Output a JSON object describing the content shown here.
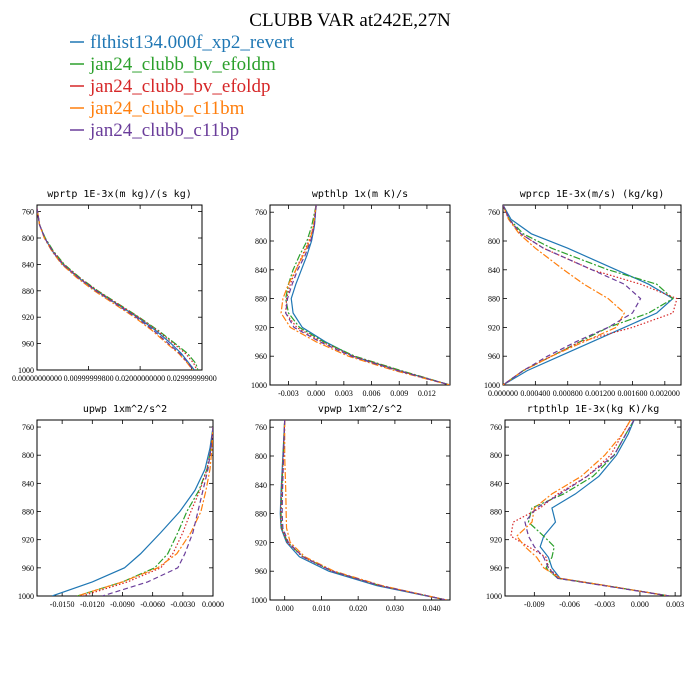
{
  "title": "CLUBB VAR at242E,27N",
  "legend": [
    {
      "label": "flthist134.000f_xp2_revert",
      "color": "#1f77b4",
      "dash": "solid"
    },
    {
      "label": "jan24_clubb_bv_efoldm",
      "color": "#2ca02c",
      "dash": "dashdot"
    },
    {
      "label": "jan24_clubb_bv_efoldp",
      "color": "#d62728",
      "dash": "dotted"
    },
    {
      "label": "jan24_clubb_c11bm",
      "color": "#ff7f0e",
      "dash": "dashdot"
    },
    {
      "label": "jan24_clubb_c11bp",
      "color": "#6a3d9a",
      "dash": "dashed"
    }
  ],
  "chart_data": [
    {
      "type": "line",
      "title": "wprtp  1E-3x(m kg)/(s kg)",
      "xlim": [
        0.0,
        0.032
      ],
      "ylim": [
        1000,
        750
      ],
      "xticks": [
        0.0,
        0.01,
        0.02,
        0.03
      ],
      "xtick_labels": [
        "0.00000000000",
        "0.00999999800",
        "0.02000000000",
        "0.02999999900"
      ],
      "yticks": [
        760,
        800,
        840,
        880,
        920,
        960,
        1000
      ],
      "ytick_labels": [
        "760",
        "800",
        "840",
        "880",
        "920",
        "960",
        "1000"
      ],
      "y": [
        755,
        780,
        800,
        820,
        840,
        860,
        880,
        900,
        920,
        940,
        960,
        975,
        990,
        1000
      ],
      "series": [
        {
          "name": "flthist134.000f_xp2_revert",
          "values": [
            0.0,
            0.0005,
            0.0015,
            0.003,
            0.005,
            0.008,
            0.0115,
            0.0155,
            0.0195,
            0.023,
            0.026,
            0.028,
            0.0295,
            0.0305
          ]
        },
        {
          "name": "jan24_clubb_bv_efoldm",
          "values": [
            0.0,
            0.0005,
            0.0016,
            0.0032,
            0.0053,
            0.0083,
            0.0118,
            0.0158,
            0.0198,
            0.0235,
            0.0268,
            0.0292,
            0.0308,
            0.0312
          ]
        },
        {
          "name": "jan24_clubb_bv_efoldp",
          "values": [
            0.0,
            0.0005,
            0.0015,
            0.0031,
            0.0052,
            0.0082,
            0.0117,
            0.0157,
            0.0197,
            0.0233,
            0.0265,
            0.0288,
            0.0304,
            0.031
          ]
        },
        {
          "name": "jan24_clubb_c11bm",
          "values": [
            0.0,
            0.0005,
            0.0014,
            0.0029,
            0.0048,
            0.0077,
            0.0111,
            0.015,
            0.0189,
            0.0223,
            0.0252,
            0.0275,
            0.0292,
            0.0302
          ]
        },
        {
          "name": "jan24_clubb_c11bp",
          "values": [
            0.0,
            0.0005,
            0.0015,
            0.003,
            0.005,
            0.008,
            0.0114,
            0.0153,
            0.0192,
            0.0226,
            0.0255,
            0.0277,
            0.0294,
            0.0303
          ]
        }
      ]
    },
    {
      "type": "line",
      "title": "wpthlp  1x(m K)/s",
      "xlim": [
        -0.005,
        0.0145
      ],
      "ylim": [
        1000,
        750
      ],
      "xticks": [
        -0.003,
        0.0,
        0.003,
        0.006,
        0.009,
        0.012
      ],
      "xtick_labels": [
        "-0.003",
        "0.000",
        "0.003",
        "0.006",
        "0.009",
        "0.012"
      ],
      "yticks": [
        760,
        800,
        840,
        880,
        920,
        960,
        1000
      ],
      "ytick_labels": [
        "760",
        "800",
        "840",
        "880",
        "920",
        "960",
        "1000"
      ],
      "y": [
        750,
        780,
        800,
        820,
        840,
        860,
        880,
        900,
        920,
        940,
        960,
        980,
        1000
      ],
      "series": [
        {
          "name": "flthist134.000f_xp2_revert",
          "values": [
            0.0,
            -0.0002,
            -0.0005,
            -0.001,
            -0.0016,
            -0.0022,
            -0.0027,
            -0.0025,
            -0.0015,
            0.001,
            0.004,
            0.009,
            0.0145
          ]
        },
        {
          "name": "jan24_clubb_bv_efoldm",
          "values": [
            0.0,
            -0.0005,
            -0.001,
            -0.0018,
            -0.0025,
            -0.003,
            -0.0033,
            -0.003,
            -0.0018,
            0.0008,
            0.0042,
            0.0092,
            0.0145
          ]
        },
        {
          "name": "jan24_clubb_bv_efoldp",
          "values": [
            0.0,
            -0.0003,
            -0.0008,
            -0.0015,
            -0.0022,
            -0.0028,
            -0.0032,
            -0.0033,
            -0.0021,
            0.0006,
            0.004,
            0.009,
            0.0145
          ]
        },
        {
          "name": "jan24_clubb_c11bm",
          "values": [
            0.0,
            -0.0003,
            -0.0007,
            -0.0014,
            -0.0022,
            -0.003,
            -0.0036,
            -0.0038,
            -0.0028,
            0.0,
            0.0035,
            0.0085,
            0.0145
          ]
        },
        {
          "name": "jan24_clubb_c11bp",
          "values": [
            0.0,
            -0.0002,
            -0.0006,
            -0.0012,
            -0.002,
            -0.0026,
            -0.0031,
            -0.0033,
            -0.0024,
            0.0004,
            0.0038,
            0.0088,
            0.0145
          ]
        }
      ]
    },
    {
      "type": "line",
      "title": "wprcp  1E-3x(m/s) (kg/kg)",
      "xlim": [
        0.0,
        0.0022
      ],
      "ylim": [
        1000,
        750
      ],
      "xticks": [
        0.0,
        0.0004,
        0.0008,
        0.0012,
        0.0016,
        0.002
      ],
      "xtick_labels": [
        "0.000000",
        "0.000400",
        "0.000800",
        "0.001200",
        "0.001600",
        "0.002000"
      ],
      "yticks": [
        760,
        800,
        840,
        880,
        920,
        960,
        1000
      ],
      "ytick_labels": [
        "760",
        "800",
        "840",
        "880",
        "920",
        "960",
        "1000"
      ],
      "y": [
        750,
        770,
        790,
        810,
        840,
        860,
        880,
        900,
        920,
        940,
        960,
        980,
        1000
      ],
      "series": [
        {
          "name": "flthist134.000f_xp2_revert",
          "values": [
            0.0,
            0.0001,
            0.00035,
            0.0008,
            0.0014,
            0.0018,
            0.0021,
            0.0019,
            0.0015,
            0.0011,
            0.0007,
            0.0003,
            0.0
          ]
        },
        {
          "name": "jan24_clubb_bv_efoldm",
          "values": [
            0.0,
            8e-05,
            0.00025,
            0.0006,
            0.0013,
            0.0019,
            0.0021,
            0.0018,
            0.0013,
            0.00095,
            0.0006,
            0.00025,
            0.0
          ]
        },
        {
          "name": "jan24_clubb_bv_efoldp",
          "values": [
            0.0,
            7e-05,
            0.00022,
            0.0005,
            0.0011,
            0.0017,
            0.00215,
            0.0021,
            0.0016,
            0.00095,
            0.0006,
            0.00025,
            0.0
          ]
        },
        {
          "name": "jan24_clubb_c11bm",
          "values": [
            0.0,
            7e-05,
            0.0002,
            0.0004,
            0.00075,
            0.001,
            0.0013,
            0.0015,
            0.0014,
            0.001,
            0.0006,
            0.00025,
            0.0
          ]
        },
        {
          "name": "jan24_clubb_c11bp",
          "values": [
            0.0,
            8e-05,
            0.00022,
            0.0005,
            0.0011,
            0.0015,
            0.0017,
            0.0016,
            0.0013,
            0.0009,
            0.00055,
            0.00025,
            0.0
          ]
        }
      ]
    },
    {
      "type": "line",
      "title": "upwp  1xm^2/s^2",
      "xlim": [
        -0.0175,
        0.0
      ],
      "ylim": [
        1000,
        750
      ],
      "xticks": [
        -0.015,
        -0.012,
        -0.009,
        -0.006,
        -0.003,
        0.0
      ],
      "xtick_labels": [
        "-0.0150",
        "-0.0120",
        "-0.0090",
        "-0.0060",
        "-0.0030",
        "0.0000"
      ],
      "yticks": [
        760,
        800,
        840,
        880,
        920,
        960,
        1000
      ],
      "ytick_labels": [
        "760",
        "800",
        "840",
        "880",
        "920",
        "960",
        "1000"
      ],
      "y": [
        760,
        790,
        820,
        850,
        880,
        910,
        940,
        960,
        980,
        1000
      ],
      "series": [
        {
          "name": "flthist134.000f_xp2_revert",
          "values": [
            0.0,
            -0.0003,
            -0.0008,
            -0.0018,
            -0.0033,
            -0.0052,
            -0.0072,
            -0.0088,
            -0.012,
            -0.016
          ]
        },
        {
          "name": "jan24_clubb_bv_efoldm",
          "values": [
            0.0,
            -0.0002,
            -0.0006,
            -0.0014,
            -0.0026,
            -0.0035,
            -0.0045,
            -0.0058,
            -0.009,
            -0.0135
          ]
        },
        {
          "name": "jan24_clubb_bv_efoldp",
          "values": [
            0.0,
            -0.0002,
            -0.0006,
            -0.0013,
            -0.0022,
            -0.003,
            -0.004,
            -0.0052,
            -0.0085,
            -0.013
          ]
        },
        {
          "name": "jan24_clubb_c11bm",
          "values": [
            0.0,
            -0.0001,
            -0.0003,
            -0.0007,
            -0.0012,
            -0.0022,
            -0.0036,
            -0.0055,
            -0.009,
            -0.0135
          ]
        },
        {
          "name": "jan24_clubb_c11bp",
          "values": [
            0.0,
            -0.0002,
            -0.0005,
            -0.001,
            -0.0015,
            -0.002,
            -0.0028,
            -0.0035,
            -0.0065,
            -0.011
          ]
        }
      ]
    },
    {
      "type": "line",
      "title": "vpwp  1xm^2/s^2",
      "xlim": [
        -0.004,
        0.045
      ],
      "ylim": [
        1000,
        750
      ],
      "xticks": [
        0.0,
        0.01,
        0.02,
        0.03,
        0.04
      ],
      "xtick_labels": [
        "0.000",
        "0.010",
        "0.020",
        "0.030",
        "0.040"
      ],
      "yticks": [
        760,
        800,
        840,
        880,
        920,
        960,
        1000
      ],
      "ytick_labels": [
        "760",
        "800",
        "840",
        "880",
        "920",
        "960",
        "1000"
      ],
      "y": [
        750,
        800,
        850,
        880,
        900,
        920,
        940,
        960,
        980,
        1000
      ],
      "series": [
        {
          "name": "flthist134.000f_xp2_revert",
          "values": [
            0.0,
            -0.0005,
            -0.001,
            -0.0012,
            -0.001,
            0.0005,
            0.004,
            0.012,
            0.025,
            0.044
          ]
        },
        {
          "name": "jan24_clubb_bv_efoldm",
          "values": [
            0.0,
            -0.0004,
            -0.0008,
            -0.001,
            -0.0008,
            0.0008,
            0.005,
            0.013,
            0.026,
            0.044
          ]
        },
        {
          "name": "jan24_clubb_bv_efoldp",
          "values": [
            0.0,
            -0.0004,
            -0.0009,
            -0.0011,
            -0.0009,
            0.0007,
            0.0048,
            0.0128,
            0.0258,
            0.044
          ]
        },
        {
          "name": "jan24_clubb_c11bm",
          "values": [
            0.0,
            0.0,
            0.0003,
            0.0004,
            0.0005,
            0.0015,
            0.0055,
            0.0135,
            0.0265,
            0.044
          ]
        },
        {
          "name": "jan24_clubb_c11bp",
          "values": [
            0.0,
            -0.0003,
            -0.0006,
            -0.0007,
            -0.0005,
            0.001,
            0.005,
            0.013,
            0.026,
            0.044
          ]
        }
      ]
    },
    {
      "type": "line",
      "title": "rtpthlp  1E-3x(kg K)/kg",
      "xlim": [
        -0.0115,
        0.0035
      ],
      "ylim": [
        1000,
        750
      ],
      "xticks": [
        -0.009,
        -0.006,
        -0.003,
        0.0,
        0.003
      ],
      "xtick_labels": [
        "-0.009",
        "-0.006",
        "-0.003",
        "0.000",
        "0.003"
      ],
      "yticks": [
        760,
        800,
        840,
        880,
        920,
        960,
        1000
      ],
      "ytick_labels": [
        "760",
        "800",
        "840",
        "880",
        "920",
        "960",
        "1000"
      ],
      "y": [
        750,
        770,
        800,
        830,
        855,
        875,
        895,
        915,
        930,
        945,
        960,
        975,
        985,
        1000
      ],
      "series": [
        {
          "name": "flthist134.000f_xp2_revert",
          "values": [
            -0.0005,
            -0.001,
            -0.002,
            -0.0035,
            -0.0055,
            -0.0075,
            -0.0072,
            -0.0082,
            -0.0085,
            -0.0078,
            -0.0075,
            -0.0068,
            -0.003,
            0.0025
          ]
        },
        {
          "name": "jan24_clubb_bv_efoldm",
          "values": [
            -0.0005,
            -0.0012,
            -0.0022,
            -0.004,
            -0.0065,
            -0.0092,
            -0.0095,
            -0.0082,
            -0.0073,
            -0.0075,
            -0.008,
            -0.007,
            -0.003,
            0.0025
          ]
        },
        {
          "name": "jan24_clubb_bv_efoldp",
          "values": [
            -0.0008,
            -0.0015,
            -0.0025,
            -0.0045,
            -0.007,
            -0.0085,
            -0.0108,
            -0.011,
            -0.0095,
            -0.008,
            -0.0078,
            -0.0068,
            -0.003,
            0.0025
          ]
        },
        {
          "name": "jan24_clubb_c11bm",
          "values": [
            -0.0008,
            -0.0015,
            -0.003,
            -0.005,
            -0.0075,
            -0.009,
            -0.0092,
            -0.0105,
            -0.0098,
            -0.0088,
            -0.0082,
            -0.0068,
            -0.003,
            0.0025
          ]
        },
        {
          "name": "jan24_clubb_c11bp",
          "values": [
            -0.0005,
            -0.0012,
            -0.0022,
            -0.0045,
            -0.0068,
            -0.0088,
            -0.0098,
            -0.0095,
            -0.009,
            -0.0082,
            -0.0078,
            -0.007,
            -0.0032,
            0.0025
          ]
        }
      ]
    }
  ]
}
